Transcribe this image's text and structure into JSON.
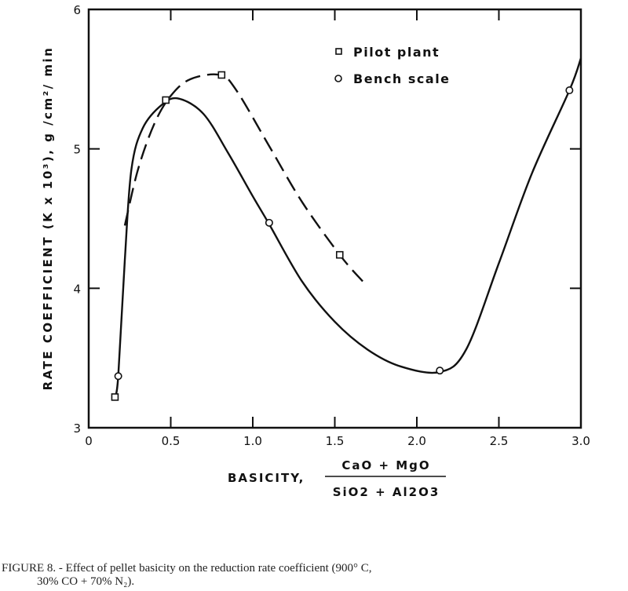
{
  "chart_data": {
    "type": "line",
    "title": "",
    "xlabel": "BASICITY,",
    "xlabel_fraction": {
      "numerator": "CaO + MgO",
      "denominator": "SiO2 + Al2O3"
    },
    "ylabel": "RATE COEFFICIENT (K x 10³), g /cm²/ min",
    "xlim": [
      0,
      3.0
    ],
    "ylim": [
      3,
      6
    ],
    "xticks": [
      "0",
      "0.5",
      "1.0",
      "1.5",
      "2.0",
      "2.5",
      "3.0"
    ],
    "xtick_values": [
      0,
      0.5,
      1.0,
      1.5,
      2.0,
      2.5,
      3.0
    ],
    "yticks": [
      "3",
      "4",
      "5",
      "6"
    ],
    "ytick_values": [
      3,
      4,
      5,
      6
    ],
    "grid": false,
    "legend_placement": "top-center",
    "series": [
      {
        "name": "Pilot plant",
        "marker": "square",
        "line": "dashed",
        "points": [
          [
            0.16,
            3.22
          ],
          [
            0.47,
            5.35
          ],
          [
            0.81,
            5.53
          ],
          [
            1.53,
            4.24
          ]
        ],
        "curve": [
          [
            0.22,
            4.45
          ],
          [
            0.3,
            4.85
          ],
          [
            0.4,
            5.18
          ],
          [
            0.5,
            5.38
          ],
          [
            0.62,
            5.5
          ],
          [
            0.8,
            5.53
          ],
          [
            0.9,
            5.42
          ],
          [
            1.1,
            5.02
          ],
          [
            1.3,
            4.62
          ],
          [
            1.53,
            4.24
          ],
          [
            1.67,
            4.05
          ]
        ]
      },
      {
        "name": "Bench scale",
        "marker": "circle",
        "line": "solid",
        "points": [
          [
            0.18,
            3.37
          ],
          [
            1.1,
            4.47
          ],
          [
            2.14,
            3.41
          ],
          [
            2.93,
            5.42
          ]
        ],
        "curve": [
          [
            0.16,
            3.22
          ],
          [
            0.18,
            3.37
          ],
          [
            0.22,
            4.2
          ],
          [
            0.26,
            4.85
          ],
          [
            0.33,
            5.15
          ],
          [
            0.45,
            5.32
          ],
          [
            0.55,
            5.36
          ],
          [
            0.7,
            5.25
          ],
          [
            0.85,
            4.97
          ],
          [
            1.0,
            4.66
          ],
          [
            1.1,
            4.46
          ],
          [
            1.3,
            4.05
          ],
          [
            1.5,
            3.76
          ],
          [
            1.7,
            3.56
          ],
          [
            1.9,
            3.44
          ],
          [
            2.14,
            3.4
          ],
          [
            2.3,
            3.56
          ],
          [
            2.5,
            4.18
          ],
          [
            2.7,
            4.82
          ],
          [
            2.93,
            5.42
          ],
          [
            3.0,
            5.65
          ]
        ]
      }
    ]
  },
  "caption": {
    "line1": "FIGURE 8. - Effect of pellet basicity on the reduction rate coefficient (900° C,",
    "line2": "            30% CO + 70% N₂)."
  }
}
